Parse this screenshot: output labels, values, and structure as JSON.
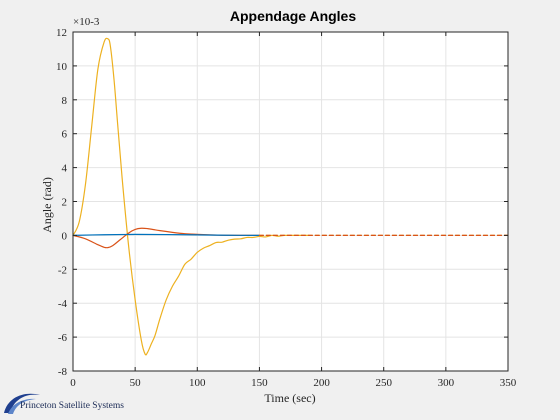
{
  "chart_data": {
    "type": "line",
    "title": "Appendage Angles",
    "xlabel": "Time (sec)",
    "ylabel": "Angle (rad)",
    "xlim": [
      0,
      350
    ],
    "ylim": [
      -8,
      12
    ],
    "y_multiplier": "×10-3",
    "x_ticks": [
      0,
      50,
      100,
      150,
      200,
      250,
      300,
      350
    ],
    "y_ticks": [
      -8,
      -6,
      -4,
      -2,
      0,
      2,
      4,
      6,
      8,
      10,
      12
    ],
    "grid": true,
    "legend": "none",
    "series": [
      {
        "color": "#edb120",
        "style": "solid",
        "x": [
          0,
          5,
          10,
          15,
          20,
          25,
          28,
          30,
          33,
          36,
          40,
          45,
          50,
          55,
          58,
          60,
          63,
          66,
          70,
          75,
          80,
          85,
          90,
          95,
          100,
          105,
          110,
          115,
          120,
          125,
          130,
          135,
          140,
          145,
          150,
          155,
          160,
          165,
          170,
          175,
          180,
          185,
          190
        ],
        "y": [
          0,
          0.8,
          3.0,
          6.4,
          9.8,
          11.4,
          11.6,
          11.2,
          9.2,
          6.5,
          3.0,
          -0.8,
          -3.8,
          -6.2,
          -7.0,
          -6.9,
          -6.4,
          -5.9,
          -4.9,
          -3.8,
          -3.0,
          -2.4,
          -1.7,
          -1.4,
          -1.0,
          -0.75,
          -0.6,
          -0.42,
          -0.4,
          -0.28,
          -0.22,
          -0.2,
          -0.12,
          -0.12,
          -0.06,
          -0.09,
          0.0,
          -0.05,
          0.0,
          0.0,
          0.0,
          0.0,
          0.0
        ]
      },
      {
        "color": "#d95319",
        "style": "solid",
        "x": [
          0,
          10,
          20,
          25,
          28,
          32,
          38,
          45,
          50,
          55,
          60,
          65,
          70,
          80,
          90,
          100,
          110,
          120,
          130,
          140,
          150
        ],
        "y": [
          0,
          -0.2,
          -0.55,
          -0.7,
          -0.72,
          -0.6,
          -0.25,
          0.15,
          0.35,
          0.42,
          0.4,
          0.34,
          0.28,
          0.18,
          0.1,
          0.06,
          0.03,
          0.01,
          0.0,
          0.0,
          0.0
        ]
      },
      {
        "color": "#0072bd",
        "style": "solid",
        "x": [
          0,
          25,
          50,
          75,
          100,
          125,
          150
        ],
        "y": [
          0,
          0.04,
          0.06,
          0.05,
          0.03,
          0.01,
          0.0
        ]
      },
      {
        "color": "#edb120",
        "style": "dashed",
        "x": [
          150,
          350
        ],
        "y": [
          0.0,
          0.0
        ]
      },
      {
        "color": "#d95319",
        "style": "dashed",
        "x": [
          150,
          350
        ],
        "y": [
          0.0,
          0.0
        ]
      }
    ]
  },
  "logo": {
    "text": "Princeton Satellite Systems"
  }
}
